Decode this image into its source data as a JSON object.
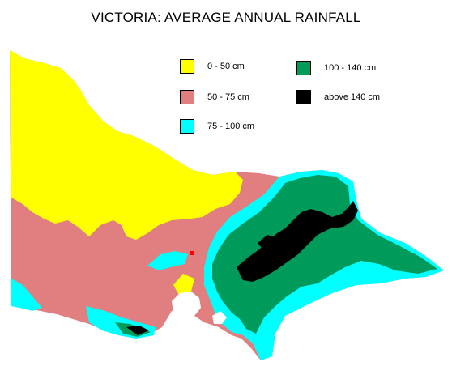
{
  "title": "VICTORIA: AVERAGE ANNUAL RAINFALL",
  "legend": [
    {
      "label": "0 - 50 cm",
      "color": "#ffff00"
    },
    {
      "label": "50 - 75 cm",
      "color": "#e07e80"
    },
    {
      "label": "75 - 100 cm",
      "color": "#00ffff"
    },
    {
      "label": "100 - 140 cm",
      "color": "#009a5a"
    },
    {
      "label": "above 140 cm",
      "color": "#000000"
    }
  ],
  "marker_color": "#ff0000"
}
